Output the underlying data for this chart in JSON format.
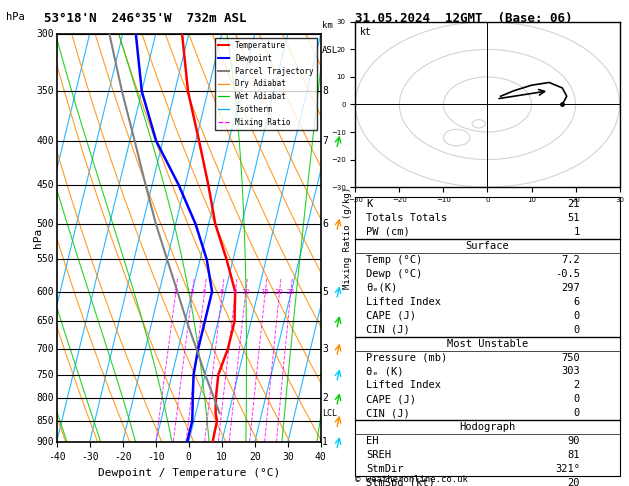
{
  "title_left": "53°18'N  246°35'W  732m ASL",
  "title_right": "31.05.2024  12GMT  (Base: 06)",
  "xlabel": "Dewpoint / Temperature (°C)",
  "ylabel_left": "hPa",
  "colors": {
    "temperature": "#ff0000",
    "dewpoint": "#0000ff",
    "parcel": "#808080",
    "dry_adiabat": "#ff8c00",
    "wet_adiabat": "#00cc00",
    "isotherm": "#00aaff",
    "mixing_ratio": "#ff00ff",
    "background": "#ffffff"
  },
  "temp_profile": {
    "pressure": [
      300,
      350,
      400,
      450,
      500,
      550,
      600,
      650,
      700,
      750,
      800,
      832,
      850,
      900
    ],
    "temp": [
      -32,
      -26,
      -19,
      -13,
      -8,
      -2,
      3,
      5,
      5,
      4,
      5,
      6,
      7,
      7.2
    ]
  },
  "dewp_profile": {
    "pressure": [
      300,
      350,
      400,
      450,
      500,
      550,
      600,
      650,
      700,
      750,
      800,
      832,
      850,
      900
    ],
    "dewp": [
      -46,
      -40,
      -32,
      -22,
      -14,
      -8,
      -4,
      -4,
      -4,
      -3.5,
      -2,
      -1,
      -0.5,
      -0.5
    ]
  },
  "parcel_profile": {
    "pressure": [
      832,
      800,
      750,
      700,
      650,
      600,
      550,
      500,
      450,
      400,
      350,
      300
    ],
    "temp": [
      7.2,
      4.5,
      0,
      -4.5,
      -9.5,
      -14.5,
      -20,
      -26,
      -32,
      -38.5,
      -46,
      -54
    ]
  },
  "lcl_pressure": 832,
  "mixing_ratio_values": [
    2,
    3,
    4,
    6,
    8,
    10,
    15,
    20,
    25
  ],
  "stats": {
    "K": 21,
    "Totals_Totals": 51,
    "PW_cm": 1,
    "Surface_Temp": 7.2,
    "Surface_Dewp": -0.5,
    "Surface_theta_e": 297,
    "Lifted_Index": 6,
    "CAPE": 0,
    "CIN": 0,
    "MU_Pressure": 750,
    "MU_theta_e": 303,
    "MU_Lifted_Index": 2,
    "MU_CAPE": 0,
    "MU_CIN": 0,
    "EH": 90,
    "SREH": 81,
    "StmDir": 321,
    "StmSpd": 20
  }
}
